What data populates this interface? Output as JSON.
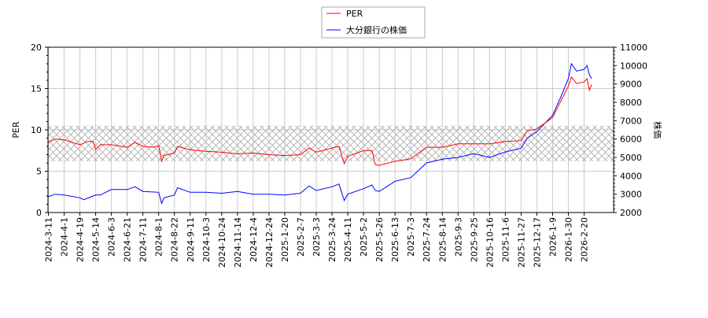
{
  "chart_data": {
    "type": "line",
    "title": "",
    "ylabel": "PER",
    "y2label": "株価",
    "ylim": [
      0,
      20
    ],
    "y2lim": [
      2000,
      11000
    ],
    "yticks": [
      0,
      5,
      10,
      15,
      20
    ],
    "y2ticks": [
      2000,
      3000,
      4000,
      5000,
      6000,
      7000,
      8000,
      9000,
      10000,
      11000
    ],
    "grid": true,
    "legend_position": "top-center",
    "band": {
      "label": "hatched PER range",
      "from": 6.2,
      "to": 10.5
    },
    "xticks": [
      "2024-3-11",
      "2024-4-1",
      "2024-4-19",
      "2024-5-14",
      "2024-6-3",
      "2024-6-21",
      "2024-7-11",
      "2024-8-1",
      "2024-8-22",
      "2024-9-11",
      "2024-10-3",
      "2024-10-24",
      "2024-11-14",
      "2024-12-4",
      "2024-12-24",
      "2025-1-20",
      "2025-2-7",
      "2025-3-3",
      "2025-3-24",
      "2025-4-11",
      "2025-5-2",
      "2025-5-26",
      "2025-6-13",
      "2025-7-3",
      "2025-7-24",
      "2025-8-14",
      "2025-9-3",
      "2025-9-25",
      "2025-10-16",
      "2025-11-6",
      "2025-11-27",
      "2025-12-17",
      "2026-1-9",
      "2026-1-30",
      "2026-2-20"
    ],
    "series": [
      {
        "name": "PER",
        "color": "#ff0000",
        "axis": "left",
        "points": [
          [
            "2024-3-11",
            8.5
          ],
          [
            "2024-3-20",
            8.9
          ],
          [
            "2024-4-1",
            8.8
          ],
          [
            "2024-4-19",
            8.2
          ],
          [
            "2024-5-1",
            8.6
          ],
          [
            "2024-5-10",
            8.6
          ],
          [
            "2024-5-14",
            7.6
          ],
          [
            "2024-5-20",
            8.2
          ],
          [
            "2024-6-3",
            8.2
          ],
          [
            "2024-6-21",
            7.9
          ],
          [
            "2024-7-1",
            8.5
          ],
          [
            "2024-7-11",
            8.0
          ],
          [
            "2024-7-25",
            7.9
          ],
          [
            "2024-8-1",
            8.1
          ],
          [
            "2024-8-5",
            6.2
          ],
          [
            "2024-8-8",
            6.9
          ],
          [
            "2024-8-22",
            7.2
          ],
          [
            "2024-8-26",
            8.0
          ],
          [
            "2024-9-11",
            7.6
          ],
          [
            "2024-10-3",
            7.4
          ],
          [
            "2024-10-24",
            7.3
          ],
          [
            "2024-11-14",
            7.1
          ],
          [
            "2024-12-4",
            7.2
          ],
          [
            "2024-12-24",
            7.0
          ],
          [
            "2025-1-20",
            6.9
          ],
          [
            "2025-2-7",
            7.0
          ],
          [
            "2025-2-20",
            7.8
          ],
          [
            "2025-3-3",
            7.3
          ],
          [
            "2025-3-24",
            7.8
          ],
          [
            "2025-4-1",
            8.0
          ],
          [
            "2025-4-7",
            5.9
          ],
          [
            "2025-4-11",
            6.8
          ],
          [
            "2025-5-2",
            7.5
          ],
          [
            "2025-5-15",
            7.5
          ],
          [
            "2025-5-20",
            5.8
          ],
          [
            "2025-5-26",
            5.7
          ],
          [
            "2025-6-13",
            6.2
          ],
          [
            "2025-7-3",
            6.5
          ],
          [
            "2025-7-24",
            7.9
          ],
          [
            "2025-8-14",
            7.9
          ],
          [
            "2025-9-3",
            8.3
          ],
          [
            "2025-9-25",
            8.3
          ],
          [
            "2025-10-16",
            8.3
          ],
          [
            "2025-11-6",
            8.6
          ],
          [
            "2025-11-27",
            8.7
          ],
          [
            "2025-12-5",
            9.9
          ],
          [
            "2025-12-17",
            10.1
          ],
          [
            "2026-1-9",
            11.5
          ],
          [
            "2026-1-20",
            13.5
          ],
          [
            "2026-1-30",
            15.3
          ],
          [
            "2026-2-3",
            16.4
          ],
          [
            "2026-2-10",
            15.6
          ],
          [
            "2026-2-20",
            15.8
          ],
          [
            "2026-2-24",
            16.2
          ],
          [
            "2026-2-27",
            14.8
          ],
          [
            "2026-3-2",
            15.5
          ]
        ]
      },
      {
        "name": "大分銀行の株価",
        "color": "#0000ff",
        "axis": "right",
        "points": [
          [
            "2024-3-11",
            2860
          ],
          [
            "2024-3-20",
            3000
          ],
          [
            "2024-4-1",
            2950
          ],
          [
            "2024-4-19",
            2800
          ],
          [
            "2024-4-25",
            2700
          ],
          [
            "2024-5-14",
            2950
          ],
          [
            "2024-5-20",
            2950
          ],
          [
            "2024-6-3",
            3250
          ],
          [
            "2024-6-21",
            3250
          ],
          [
            "2024-7-1",
            3400
          ],
          [
            "2024-7-11",
            3150
          ],
          [
            "2024-8-1",
            3100
          ],
          [
            "2024-8-5",
            2500
          ],
          [
            "2024-8-8",
            2800
          ],
          [
            "2024-8-22",
            2950
          ],
          [
            "2024-8-26",
            3350
          ],
          [
            "2024-9-11",
            3100
          ],
          [
            "2024-10-3",
            3100
          ],
          [
            "2024-10-24",
            3050
          ],
          [
            "2024-11-14",
            3150
          ],
          [
            "2024-12-4",
            3000
          ],
          [
            "2024-12-24",
            3000
          ],
          [
            "2025-1-20",
            2950
          ],
          [
            "2025-2-7",
            3050
          ],
          [
            "2025-2-20",
            3450
          ],
          [
            "2025-3-3",
            3200
          ],
          [
            "2025-3-24",
            3400
          ],
          [
            "2025-4-1",
            3550
          ],
          [
            "2025-4-7",
            2650
          ],
          [
            "2025-4-11",
            3000
          ],
          [
            "2025-5-2",
            3300
          ],
          [
            "2025-5-15",
            3500
          ],
          [
            "2025-5-20",
            3200
          ],
          [
            "2025-5-26",
            3150
          ],
          [
            "2025-6-13",
            3700
          ],
          [
            "2025-7-3",
            3900
          ],
          [
            "2025-7-24",
            4700
          ],
          [
            "2025-8-14",
            4900
          ],
          [
            "2025-9-3",
            5000
          ],
          [
            "2025-9-25",
            5200
          ],
          [
            "2025-10-16",
            5000
          ],
          [
            "2025-11-6",
            5300
          ],
          [
            "2025-11-27",
            5500
          ],
          [
            "2025-12-5",
            6050
          ],
          [
            "2025-12-17",
            6400
          ],
          [
            "2026-1-9",
            7300
          ],
          [
            "2026-1-20",
            8300
          ],
          [
            "2026-1-30",
            9300
          ],
          [
            "2026-2-3",
            10100
          ],
          [
            "2026-2-10",
            9700
          ],
          [
            "2026-2-20",
            9800
          ],
          [
            "2026-2-24",
            10000
          ],
          [
            "2026-2-27",
            9500
          ],
          [
            "2026-3-2",
            9300
          ]
        ]
      }
    ]
  }
}
